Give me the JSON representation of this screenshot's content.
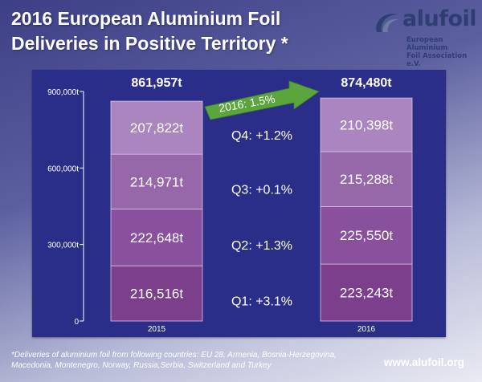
{
  "title_line1": "2016 European Aluminium Foil",
  "title_line2": "Deliveries in Positive Territory *",
  "logo": {
    "word": "alufoil",
    "subtitle_line1": "European Aluminium",
    "subtitle_line2": "Foil Association e.V."
  },
  "footnote": "*Deliveries of aluminium foil from following countries: EU 28, Armenia, Bosnia-Herzegovina, Macedonia, Montenegro, Norway, Russia,Serbia, Switzerland and Turkey",
  "website": "www.alufoil.org",
  "colors": {
    "panel": "#2c2f88",
    "q1": "#7b3f8b",
    "q2": "#89519d",
    "q3": "#9668aa",
    "q4": "#aa85bf",
    "arrow": "#5aa63c",
    "segment_text": "#ffffff"
  },
  "chart_data": {
    "type": "bar",
    "stacked": true,
    "categories": [
      "2015",
      "2016"
    ],
    "series": [
      {
        "name": "Q1",
        "values": [
          216516,
          223243
        ],
        "labels": [
          "216,516t",
          "223,243t"
        ]
      },
      {
        "name": "Q2",
        "values": [
          222648,
          225550
        ],
        "labels": [
          "222,648t",
          "225,550t"
        ]
      },
      {
        "name": "Q3",
        "values": [
          214971,
          215288
        ],
        "labels": [
          "214,971t",
          "215,288t"
        ]
      },
      {
        "name": "Q4",
        "values": [
          207822,
          210398
        ],
        "labels": [
          "207,822t",
          "210,398t"
        ]
      }
    ],
    "totals": [
      861957,
      874480
    ],
    "total_labels": [
      "861,957t",
      "874,480t"
    ],
    "quarter_changes": [
      "Q1: +3.1%",
      "Q2: +1.3%",
      "Q3: +0.1%",
      "Q4: +1.2%"
    ],
    "annual_change": "2016: 1.5%",
    "yticks": [
      0,
      300000,
      600000,
      900000
    ],
    "ytick_labels": [
      "0",
      "300,000t",
      "600,000t",
      "900,000t"
    ],
    "ylim": [
      0,
      900000
    ],
    "title": "",
    "xlabel": "",
    "ylabel": ""
  }
}
